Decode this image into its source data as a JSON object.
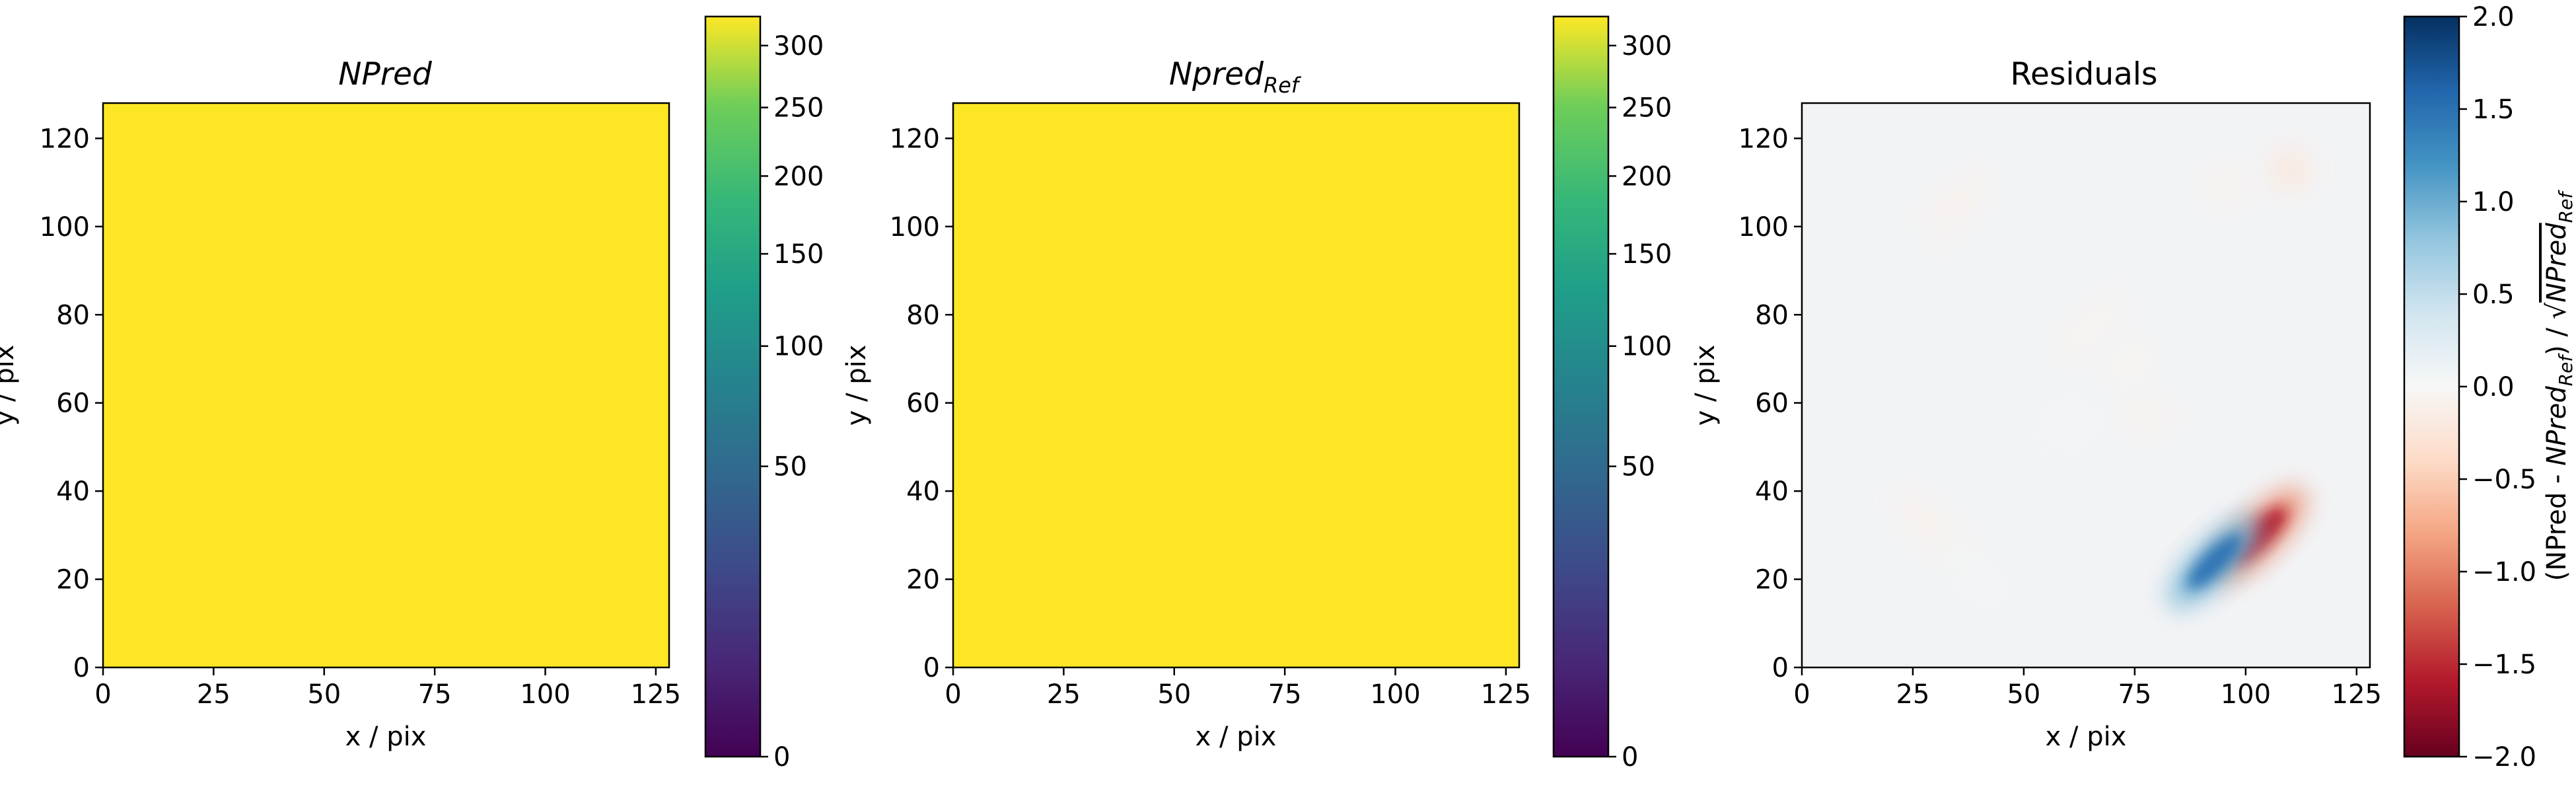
{
  "chart_data": [
    {
      "type": "heatmap",
      "title": "NPred",
      "xlabel": "x / pix",
      "ylabel": "y / pix",
      "xlim": [
        0,
        128
      ],
      "ylim": [
        0,
        128
      ],
      "xticks": [
        0,
        25,
        50,
        75,
        100,
        125
      ],
      "yticks": [
        0,
        20,
        40,
        60,
        80,
        100,
        120
      ],
      "colormap": "viridis",
      "colorbar": {
        "scale": "sqrt",
        "range": [
          0,
          325
        ],
        "ticks": [
          0,
          50,
          100,
          150,
          200,
          250,
          300
        ]
      },
      "uniform_value": 325,
      "fill_color": "#fde725"
    },
    {
      "type": "heatmap",
      "title": "Npred",
      "title_subscript": "Ref",
      "xlabel": "x / pix",
      "ylabel": "y / pix",
      "xlim": [
        0,
        128
      ],
      "ylim": [
        0,
        128
      ],
      "xticks": [
        0,
        25,
        50,
        75,
        100,
        125
      ],
      "yticks": [
        0,
        20,
        40,
        60,
        80,
        100,
        120
      ],
      "colormap": "viridis",
      "colorbar": {
        "scale": "sqrt",
        "range": [
          0,
          325
        ],
        "ticks": [
          0,
          50,
          100,
          150,
          200,
          250,
          300
        ]
      },
      "uniform_value": 325,
      "fill_color": "#fde725"
    },
    {
      "type": "heatmap",
      "title": "Residuals",
      "xlabel": "x / pix",
      "ylabel": "y / pix",
      "xlim": [
        0,
        128
      ],
      "ylim": [
        0,
        128
      ],
      "xticks": [
        0,
        25,
        50,
        75,
        100,
        125
      ],
      "yticks": [
        0,
        20,
        40,
        60,
        80,
        100,
        120
      ],
      "colormap": "RdBu",
      "colorbar": {
        "scale": "linear",
        "range": [
          -2.0,
          2.0
        ],
        "ticks": [
          -2.0,
          -1.5,
          -1.0,
          -0.5,
          0.0,
          0.5,
          1.0,
          1.5,
          2.0
        ],
        "tick_labels": [
          "−2.0",
          "−1.5",
          "−1.0",
          "−0.5",
          "0.0",
          "0.5",
          "1.0",
          "1.5",
          "2.0"
        ],
        "label": "(NPred - NPred_Ref) / √NPred_Ref"
      },
      "features": [
        {
          "x": 103,
          "y": 30,
          "value": -1.6,
          "sx": 14,
          "sy": 5,
          "angle_deg": -45
        },
        {
          "x": 93,
          "y": 24,
          "value": 1.5,
          "sx": 14,
          "sy": 5,
          "angle_deg": -45
        },
        {
          "x": 110,
          "y": 113,
          "value": -0.35,
          "sx": 5,
          "sy": 5,
          "angle_deg": 0
        },
        {
          "x": 96,
          "y": 109,
          "value": -0.15,
          "sx": 5,
          "sy": 4,
          "angle_deg": 0
        },
        {
          "x": 86,
          "y": 92,
          "value": 0.12,
          "sx": 5,
          "sy": 4,
          "angle_deg": 0
        },
        {
          "x": 33,
          "y": 103,
          "value": -0.15,
          "sx": 13,
          "sy": 4,
          "angle_deg": -45
        },
        {
          "x": 22,
          "y": 93,
          "value": 0.12,
          "sx": 12,
          "sy": 4,
          "angle_deg": -45
        },
        {
          "x": 30,
          "y": 31,
          "value": -0.15,
          "sx": 12,
          "sy": 4,
          "angle_deg": 45
        },
        {
          "x": 38,
          "y": 22,
          "value": 0.08,
          "sx": 10,
          "sy": 4,
          "angle_deg": 45
        },
        {
          "x": 65,
          "y": 77,
          "value": -0.1,
          "sx": 10,
          "sy": 4,
          "angle_deg": -45
        },
        {
          "x": 74,
          "y": 69,
          "value": -0.08,
          "sx": 6,
          "sy": 4,
          "angle_deg": -45
        },
        {
          "x": 78,
          "y": 57,
          "value": -0.12,
          "sx": 6,
          "sy": 4,
          "angle_deg": 0
        },
        {
          "x": 60,
          "y": 55,
          "value": 0.05,
          "sx": 5,
          "sy": 4,
          "angle_deg": 0
        }
      ]
    }
  ]
}
